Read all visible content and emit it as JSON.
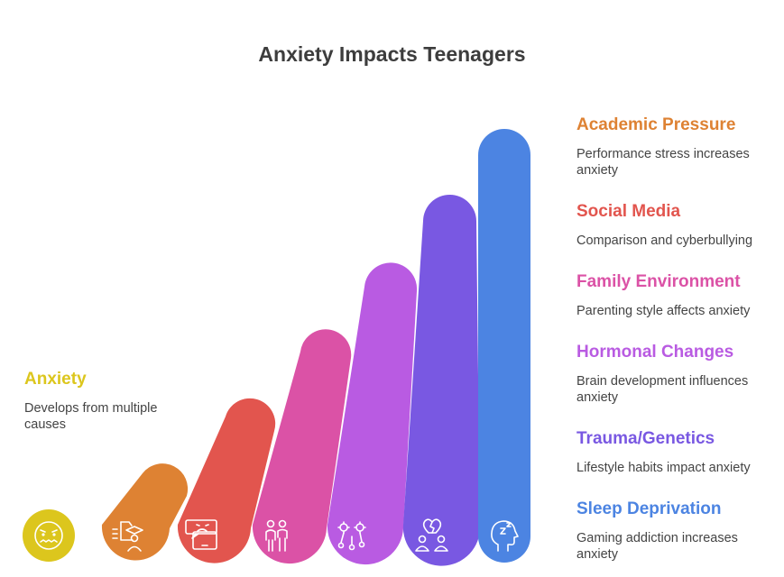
{
  "title": "Anxiety Impacts Teenagers",
  "colors": {
    "anxiety": "#DCC61D",
    "academic": "#DE8233",
    "social": "#E2554E",
    "family": "#DB52A6",
    "hormonal": "#B95BE2",
    "trauma": "#7958E2",
    "sleep": "#4C84E2"
  },
  "anxiety": {
    "heading": "Anxiety",
    "description": "Develops from multiple causes",
    "icon": "anxious-face-icon"
  },
  "factors": [
    {
      "heading": "Academic Pressure",
      "description": "Performance stress increases anxiety",
      "icon": "graduate-document-icon"
    },
    {
      "heading": "Social Media",
      "description": "Comparison and cyberbullying",
      "icon": "phone-angry-message-icon"
    },
    {
      "heading": "Family Environment",
      "description": "Parenting style affects anxiety",
      "icon": "family-icon"
    },
    {
      "heading": "Hormonal Changes",
      "description": "Brain development influences anxiety",
      "icon": "neurons-icon"
    },
    {
      "heading": "Trauma/Genetics",
      "description": "Lifestyle habits impact anxiety",
      "icon": "broken-heart-people-icon"
    },
    {
      "heading": "Sleep Deprivation",
      "description": "Gaming addiction increases anxiety",
      "icon": "sleep-head-icon"
    }
  ]
}
